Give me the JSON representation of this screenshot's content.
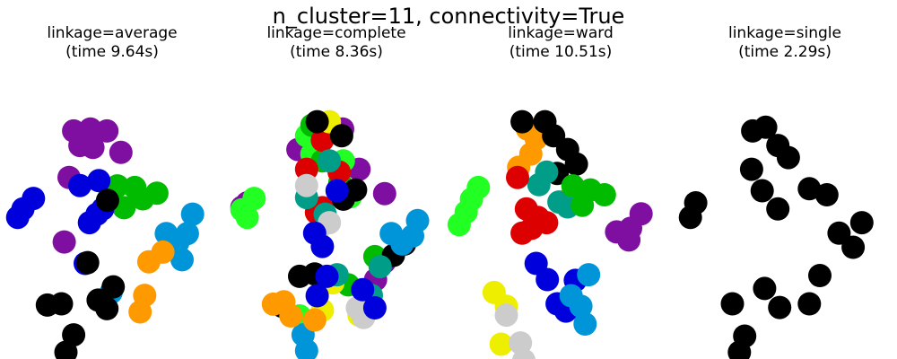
{
  "figure": {
    "suptitle": "n_cluster=11, connectivity=True"
  },
  "palette": {
    "purple": "#7f0fa0",
    "green": "#00bb00",
    "lime": "#22ff22",
    "blue": "#0000dd",
    "sky": "#0094d9",
    "orange": "#ff9900",
    "black": "#000000",
    "red": "#dd0000",
    "teal": "#009e88",
    "yellow": "#eeee00",
    "gray": "#cccccc"
  },
  "chart_data": [
    {
      "type": "scatter",
      "title": "linkage=average",
      "subtitle": "(time 9.64s)",
      "x_range": [
        -3,
        3
      ],
      "y_range": [
        -3,
        3
      ],
      "axis": "off",
      "clusters": [
        {
          "color": "purple",
          "points": [
            [
              -1.1,
              1.98
            ],
            [
              -0.62,
              2.03
            ],
            [
              -0.15,
              1.98
            ],
            [
              0.25,
              1.45
            ],
            [
              -0.55,
              1.57
            ],
            [
              -0.92,
              1.62
            ],
            [
              -1.23,
              0.83
            ],
            [
              -1.37,
              -0.77
            ]
          ]
        },
        {
          "color": "green",
          "points": [
            [
              0.15,
              0.62
            ],
            [
              0.65,
              0.58
            ],
            [
              1.28,
              0.44
            ],
            [
              0.88,
              0.3
            ],
            [
              0.34,
              0.08
            ]
          ]
        },
        {
          "color": "blue",
          "points": [
            [
              -2.55,
              0.05
            ],
            [
              -2.25,
              0.31
            ],
            [
              -2.7,
              -0.16
            ],
            [
              -0.38,
              0.75
            ],
            [
              -0.65,
              -0.29
            ],
            [
              -0.43,
              -0.08
            ],
            [
              -0.27,
              0.05
            ],
            [
              -0.92,
              0.63
            ],
            [
              -0.77,
              -1.3
            ]
          ]
        },
        {
          "color": "sky",
          "points": [
            [
              1.55,
              -0.56
            ],
            [
              1.88,
              -0.78
            ],
            [
              2.15,
              -0.56
            ],
            [
              2.3,
              -0.08
            ],
            [
              2.0,
              -1.21
            ],
            [
              -0.03,
              -2.02
            ]
          ]
        },
        {
          "color": "orange",
          "points": [
            [
              1.05,
              -1.26
            ],
            [
              0.93,
              -2.09
            ],
            [
              0.8,
              -2.5
            ],
            [
              1.45,
              -1.02
            ]
          ]
        },
        {
          "color": "black",
          "points": [
            [
              -1.45,
              -2.3
            ],
            [
              -1.85,
              -2.33
            ],
            [
              -0.7,
              -1.28
            ],
            [
              -0.15,
              -2.42
            ],
            [
              0.03,
              -1.88
            ],
            [
              -0.4,
              -2.21
            ],
            [
              -1.1,
              -3.07
            ],
            [
              -1.32,
              -3.5
            ],
            [
              -0.13,
              0.26
            ]
          ]
        }
      ]
    },
    {
      "type": "scatter",
      "title": "linkage=complete",
      "subtitle": "(time 8.36s)",
      "x_range": [
        -3,
        3
      ],
      "y_range": [
        -3,
        3
      ],
      "axis": "off",
      "clusters": [
        {
          "color": "purple",
          "points": [
            [
              -2.55,
              0.2
            ],
            [
              -2.7,
              0.09
            ],
            [
              0.18,
              2.03
            ],
            [
              0.65,
              1.03
            ],
            [
              -1.1,
              1.52
            ],
            [
              1.38,
              0.43
            ],
            [
              1.12,
              -1.7
            ],
            [
              1.37,
              -1.27
            ]
          ]
        },
        {
          "color": "lime",
          "points": [
            [
              -2.7,
              0.03
            ],
            [
              -2.55,
              -0.16
            ],
            [
              -2.35,
              0.31
            ],
            [
              -0.4,
              2.12
            ],
            [
              0.4,
              0.35
            ],
            [
              0.2,
              1.24
            ],
            [
              -0.85,
              1.86
            ],
            [
              -0.7,
              1.41
            ],
            [
              -1.05,
              -2.6
            ]
          ]
        },
        {
          "color": "green",
          "points": [
            [
              -0.7,
              2.12
            ],
            [
              -0.4,
              1.24
            ],
            [
              0.1,
              0.71
            ],
            [
              1.1,
              -1.13
            ],
            [
              0.34,
              -1.83
            ]
          ]
        },
        {
          "color": "red",
          "points": [
            [
              -0.4,
              1.75
            ],
            [
              -0.85,
              1.03
            ],
            [
              0.08,
              0.96
            ],
            [
              -0.4,
              0.08
            ],
            [
              -0.57,
              -0.04
            ]
          ]
        },
        {
          "color": "yellow",
          "points": [
            [
              -0.2,
              2.21
            ],
            [
              -0.4,
              -2.46
            ],
            [
              -0.1,
              -1.78
            ],
            [
              0.65,
              -2.58
            ],
            [
              0.82,
              -2.31
            ]
          ]
        },
        {
          "color": "black",
          "points": [
            [
              -0.55,
              2.21
            ],
            [
              0.15,
              1.86
            ],
            [
              0.55,
              0.52
            ],
            [
              0.2,
              0.29
            ],
            [
              -0.62,
              -1.56
            ],
            [
              -1.05,
              -1.62
            ],
            [
              1.95,
              -0.82
            ],
            [
              1.63,
              -1.1
            ],
            [
              -1.55,
              -2.36
            ]
          ]
        },
        {
          "color": "teal",
          "points": [
            [
              -0.2,
              1.24
            ],
            [
              -0.85,
              0.33
            ],
            [
              -0.32,
              -0.08
            ],
            [
              0.02,
              -1.58
            ],
            [
              1.25,
              -1.38
            ],
            [
              1.0,
              -2.09
            ],
            [
              0.72,
              -2.5
            ]
          ]
        },
        {
          "color": "gray",
          "points": [
            [
              -0.85,
              0.63
            ],
            [
              -0.2,
              -0.29
            ],
            [
              -0.55,
              -0.55
            ],
            [
              0.78,
              -2.64
            ],
            [
              0.6,
              -2.4
            ]
          ]
        },
        {
          "color": "blue",
          "points": [
            [
              -0.62,
              -0.55
            ],
            [
              -0.4,
              -0.88
            ],
            [
              0.02,
              0.5
            ],
            [
              -0.55,
              -2.1
            ],
            [
              -0.27,
              -1.62
            ],
            [
              0.75,
              -1.95
            ],
            [
              1.1,
              -2.4
            ]
          ]
        },
        {
          "color": "sky",
          "points": [
            [
              1.57,
              -0.56
            ],
            [
              1.88,
              -0.82
            ],
            [
              2.32,
              -0.24
            ],
            [
              2.18,
              -0.62
            ],
            [
              -0.85,
              -3.46
            ],
            [
              -0.95,
              -3.07
            ]
          ]
        },
        {
          "color": "orange",
          "points": [
            [
              -1.5,
              -2.25
            ],
            [
              -1.8,
              -2.31
            ],
            [
              -1.3,
              -2.6
            ],
            [
              -0.62,
              -2.7
            ]
          ]
        }
      ]
    },
    {
      "type": "scatter",
      "title": "linkage=ward",
      "subtitle": "(time 10.51s)",
      "x_range": [
        -3,
        3
      ],
      "y_range": [
        -3,
        3
      ],
      "axis": "off",
      "clusters": [
        {
          "color": "orange",
          "points": [
            [
              -0.95,
              2.03
            ],
            [
              -0.85,
              1.41
            ],
            [
              -0.7,
              1.79
            ],
            [
              -1.2,
              1.08
            ],
            [
              0.28,
              0.33
            ]
          ]
        },
        {
          "color": "black",
          "points": [
            [
              -1.1,
              2.21
            ],
            [
              -0.45,
              2.21
            ],
            [
              0.2,
              1.52
            ],
            [
              -0.2,
              1.86
            ],
            [
              0.45,
              1.16
            ],
            [
              -0.1,
              0.93
            ]
          ]
        },
        {
          "color": "teal",
          "points": [
            [
              -0.4,
              0.96
            ],
            [
              -0.62,
              0.65
            ],
            [
              -0.05,
              0.22
            ],
            [
              0.2,
              0.1
            ]
          ]
        },
        {
          "color": "green",
          "points": [
            [
              0.35,
              0.62
            ],
            [
              0.85,
              0.52
            ],
            [
              1.25,
              0.4
            ],
            [
              0.62,
              0.14
            ]
          ]
        },
        {
          "color": "lime",
          "points": [
            [
              -2.35,
              0.58
            ],
            [
              -2.55,
              0.29
            ],
            [
              -2.7,
              -0.03
            ],
            [
              -2.9,
              -0.34
            ]
          ]
        },
        {
          "color": "red",
          "points": [
            [
              -1.23,
              0.83
            ],
            [
              -0.98,
              0.05
            ],
            [
              -0.65,
              -0.16
            ],
            [
              -0.83,
              -0.43
            ],
            [
              -0.4,
              -0.29
            ],
            [
              -1.1,
              -0.55
            ]
          ]
        },
        {
          "color": "purple",
          "points": [
            [
              1.6,
              -0.52
            ],
            [
              1.95,
              -0.72
            ],
            [
              2.3,
              -0.07
            ],
            [
              2.0,
              -0.43
            ]
          ]
        },
        {
          "color": "blue",
          "points": [
            [
              -0.7,
              -1.3
            ],
            [
              -0.38,
              -1.7
            ],
            [
              -0.1,
              -2.3
            ],
            [
              0.15,
              -2.48
            ],
            [
              0.42,
              -1.72
            ]
          ]
        },
        {
          "color": "sky",
          "points": [
            [
              0.3,
              -2.1
            ],
            [
              0.58,
              -2.36
            ],
            [
              0.8,
              -1.58
            ],
            [
              0.7,
              -2.8
            ]
          ]
        },
        {
          "color": "yellow",
          "points": [
            [
              -1.9,
              -2.02
            ],
            [
              -1.55,
              -2.36
            ],
            [
              -1.7,
              -3.3
            ]
          ]
        },
        {
          "color": "gray",
          "points": [
            [
              -1.15,
              -3.27
            ],
            [
              -1.05,
              -3.7
            ],
            [
              -1.55,
              -2.58
            ]
          ]
        }
      ]
    },
    {
      "type": "scatter",
      "title": "linkage=single",
      "subtitle": "(time 2.29s)",
      "x_range": [
        -3,
        3
      ],
      "y_range": [
        -3,
        3
      ],
      "axis": "off",
      "clusters": [
        {
          "color": "black",
          "points": [
            [
              -0.92,
              1.98
            ],
            [
              -0.55,
              2.07
            ],
            [
              -0.2,
              1.62
            ],
            [
              0.1,
              1.32
            ],
            [
              -0.95,
              1.03
            ],
            [
              -0.65,
              0.5
            ],
            [
              -0.2,
              0.05
            ],
            [
              0.7,
              0.55
            ],
            [
              1.2,
              0.4
            ],
            [
              -2.55,
              0.2
            ],
            [
              -2.7,
              -0.16
            ],
            [
              1.55,
              -0.55
            ],
            [
              2.2,
              -0.29
            ],
            [
              1.95,
              -0.9
            ],
            [
              -1.5,
              -2.3
            ],
            [
              -0.58,
              -1.92
            ],
            [
              -0.15,
              -2.39
            ],
            [
              0.7,
              -2.3
            ],
            [
              1.0,
              -1.6
            ],
            [
              -1.15,
              -3.1
            ],
            [
              -1.3,
              -3.5
            ]
          ]
        }
      ]
    }
  ]
}
